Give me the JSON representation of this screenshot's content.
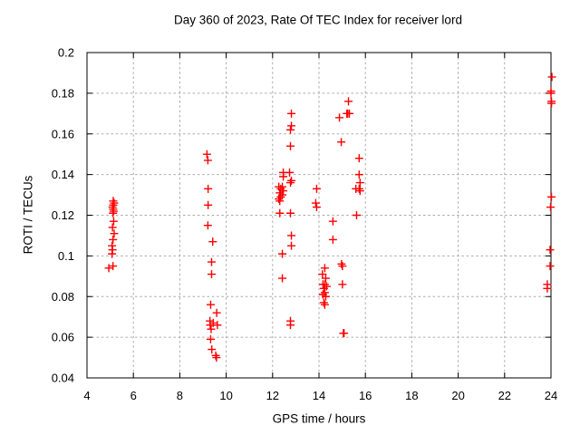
{
  "title": "Day 360 of 2023, Rate Of TEC Index for receiver lord",
  "colors": {
    "marker": "#ff0000",
    "grid": "#aaaaaa",
    "axis": "#000000",
    "background": "#ffffff",
    "text": "#000000"
  },
  "chart_data": {
    "type": "scatter",
    "title": "Day 360 of 2023, Rate Of TEC Index for receiver lord",
    "xlabel": "GPS time / hours",
    "ylabel": "ROTI / TECUs",
    "xlim": [
      4,
      24
    ],
    "ylim": [
      0.04,
      0.2
    ],
    "x_ticks": [
      4,
      6,
      8,
      10,
      12,
      14,
      16,
      18,
      20,
      22,
      24
    ],
    "x_tick_labels": [
      "4",
      "6",
      "8",
      "10",
      "12",
      "14",
      "16",
      "18",
      "20",
      "22",
      "24"
    ],
    "y_ticks": [
      0.04,
      0.06,
      0.08,
      0.1,
      0.12,
      0.14,
      0.16,
      0.18,
      0.2
    ],
    "y_tick_labels": [
      "0.04",
      "0.06",
      "0.08",
      "0.1",
      "0.12",
      "0.14",
      "0.16",
      "0.18",
      "0.2"
    ],
    "grid": true,
    "legend": "none",
    "marker": "plus",
    "series": [
      {
        "name": "ROTI",
        "points": [
          [
            4.94,
            0.094
          ],
          [
            5.08,
            0.101
          ],
          [
            5.08,
            0.105
          ],
          [
            5.1,
            0.103
          ],
          [
            5.1,
            0.114
          ],
          [
            5.1,
            0.124
          ],
          [
            5.12,
            0.095
          ],
          [
            5.12,
            0.108
          ],
          [
            5.12,
            0.121
          ],
          [
            5.13,
            0.123
          ],
          [
            5.13,
            0.125
          ],
          [
            5.13,
            0.127
          ],
          [
            5.15,
            0.117
          ],
          [
            5.15,
            0.122
          ],
          [
            5.17,
            0.111
          ],
          [
            5.17,
            0.126
          ],
          [
            9.17,
            0.15
          ],
          [
            9.21,
            0.147
          ],
          [
            9.21,
            0.115
          ],
          [
            9.22,
            0.133
          ],
          [
            9.22,
            0.125
          ],
          [
            9.3,
            0.068
          ],
          [
            9.31,
            0.066
          ],
          [
            9.33,
            0.076
          ],
          [
            9.33,
            0.059
          ],
          [
            9.35,
            0.064
          ],
          [
            9.37,
            0.097
          ],
          [
            9.37,
            0.091
          ],
          [
            9.38,
            0.054
          ],
          [
            9.42,
            0.107
          ],
          [
            9.44,
            0.067
          ],
          [
            9.55,
            0.051
          ],
          [
            9.58,
            0.05
          ],
          [
            9.59,
            0.072
          ],
          [
            9.62,
            0.066
          ],
          [
            12.27,
            0.134
          ],
          [
            12.27,
            0.128
          ],
          [
            12.31,
            0.131
          ],
          [
            12.31,
            0.127
          ],
          [
            12.31,
            0.121
          ],
          [
            12.35,
            0.133
          ],
          [
            12.35,
            0.129
          ],
          [
            12.42,
            0.134
          ],
          [
            12.42,
            0.13
          ],
          [
            12.42,
            0.101
          ],
          [
            12.42,
            0.089
          ],
          [
            12.46,
            0.141
          ],
          [
            12.46,
            0.139
          ],
          [
            12.46,
            0.132
          ],
          [
            12.73,
            0.141
          ],
          [
            12.77,
            0.162
          ],
          [
            12.77,
            0.154
          ],
          [
            12.77,
            0.136
          ],
          [
            12.77,
            0.121
          ],
          [
            12.77,
            0.068
          ],
          [
            12.77,
            0.066
          ],
          [
            12.81,
            0.17
          ],
          [
            12.81,
            0.164
          ],
          [
            12.81,
            0.137
          ],
          [
            12.81,
            0.11
          ],
          [
            12.81,
            0.105
          ],
          [
            13.86,
            0.126
          ],
          [
            13.9,
            0.133
          ],
          [
            13.9,
            0.124
          ],
          [
            14.15,
            0.091
          ],
          [
            14.17,
            0.086
          ],
          [
            14.17,
            0.081
          ],
          [
            14.21,
            0.084
          ],
          [
            14.21,
            0.077
          ],
          [
            14.25,
            0.094
          ],
          [
            14.25,
            0.086
          ],
          [
            14.25,
            0.082
          ],
          [
            14.25,
            0.076
          ],
          [
            14.29,
            0.089
          ],
          [
            14.29,
            0.08
          ],
          [
            14.33,
            0.085
          ],
          [
            14.6,
            0.117
          ],
          [
            14.6,
            0.108
          ],
          [
            14.88,
            0.168
          ],
          [
            14.96,
            0.156
          ],
          [
            14.97,
            0.096
          ],
          [
            15.01,
            0.095
          ],
          [
            15.01,
            0.086
          ],
          [
            15.05,
            0.062
          ],
          [
            15.08,
            0.062
          ],
          [
            15.2,
            0.17
          ],
          [
            15.24,
            0.17
          ],
          [
            15.27,
            0.176
          ],
          [
            15.31,
            0.17
          ],
          [
            15.59,
            0.133
          ],
          [
            15.62,
            0.12
          ],
          [
            15.73,
            0.148
          ],
          [
            15.73,
            0.14
          ],
          [
            15.73,
            0.133
          ],
          [
            15.77,
            0.136
          ],
          [
            15.77,
            0.132
          ],
          [
            23.84,
            0.086
          ],
          [
            23.84,
            0.084
          ],
          [
            23.96,
            0.103
          ],
          [
            23.96,
            0.095
          ],
          [
            23.98,
            0.124
          ],
          [
            24.0,
            0.181
          ],
          [
            24.0,
            0.18
          ],
          [
            24.02,
            0.176
          ],
          [
            24.02,
            0.175
          ],
          [
            24.02,
            0.129
          ],
          [
            24.04,
            0.188
          ]
        ]
      }
    ]
  }
}
